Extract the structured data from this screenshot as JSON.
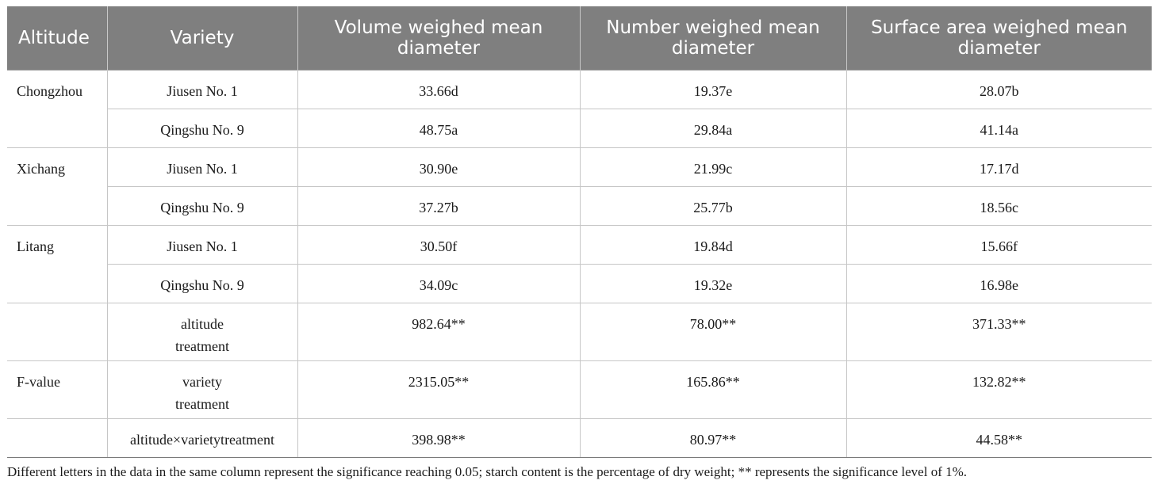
{
  "headers": [
    "Altitude",
    "Variety",
    "Volume weighed mean diameter",
    "Number weighed mean diameter",
    "Surface area weighed mean diameter"
  ],
  "rows": [
    {
      "altitude": "Chongzhou",
      "variety": "Jiusen No. 1",
      "volume": "33.66d",
      "number": "19.37e",
      "surface": "28.07b"
    },
    {
      "altitude": "",
      "variety": "Qingshu No. 9",
      "volume": "48.75a",
      "number": "29.84a",
      "surface": "41.14a"
    },
    {
      "altitude": "Xichang",
      "variety": "Jiusen No. 1",
      "volume": "30.90e",
      "number": "21.99c",
      "surface": "17.17d"
    },
    {
      "altitude": "",
      "variety": "Qingshu No. 9",
      "volume": "37.27b",
      "number": "25.77b",
      "surface": "18.56c"
    },
    {
      "altitude": "Litang",
      "variety": "Jiusen No. 1",
      "volume": "30.50f",
      "number": "19.84d",
      "surface": "15.66f"
    },
    {
      "altitude": "",
      "variety": "Qingshu No. 9",
      "volume": "34.09c",
      "number": "19.32e",
      "surface": "16.98e"
    },
    {
      "altitude": "",
      "variety": "altitude treatment",
      "volume": "982.64**",
      "number": "78.00**",
      "surface": "371.33**"
    },
    {
      "altitude": "F-value",
      "variety": "variety treatment",
      "volume": "2315.05**",
      "number": "165.86**",
      "surface": "132.82**"
    },
    {
      "altitude": "",
      "variety": "altitude×varietytreatment",
      "volume": "398.98**",
      "number": "80.97**",
      "surface": "44.58**"
    }
  ],
  "note": "Different letters in the data in the same column represent the significance reaching 0.05; starch content is the percentage of dry weight; ** represents the significance level of 1%."
}
